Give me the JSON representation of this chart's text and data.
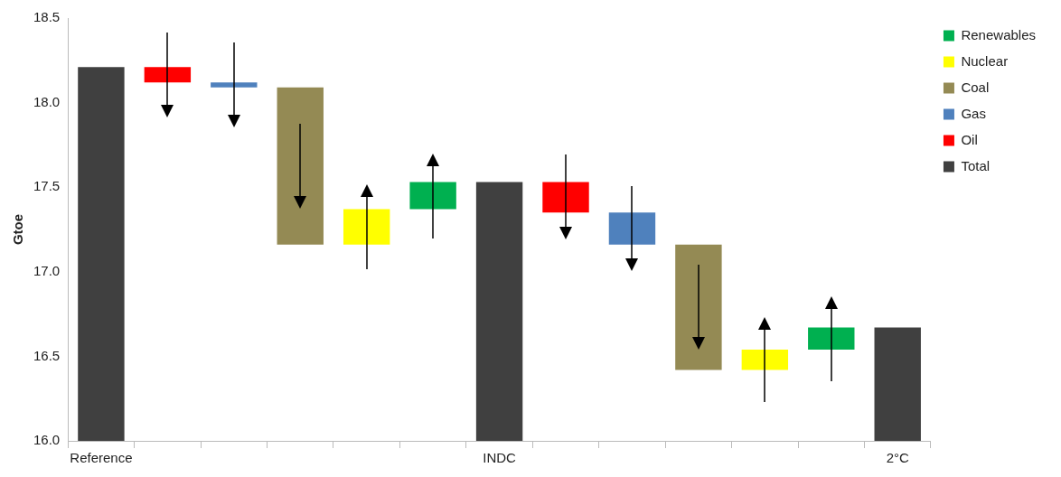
{
  "chart_data": {
    "type": "bar",
    "ylabel": "Gtoe",
    "categories": [
      "Reference",
      null,
      null,
      null,
      null,
      null,
      "INDC",
      null,
      null,
      null,
      null,
      null,
      "2°C"
    ],
    "series": [
      {
        "name": "Renewables",
        "color": "#00b050",
        "values": [
          null,
          null,
          null,
          null,
          null,
          0.16,
          null,
          null,
          null,
          null,
          null,
          0.13,
          null
        ],
        "base": [
          null,
          null,
          null,
          null,
          null,
          17.37,
          null,
          null,
          null,
          null,
          null,
          16.54,
          null
        ]
      },
      {
        "name": "Nuclear",
        "color": "#ffff00",
        "values": [
          null,
          null,
          null,
          null,
          0.21,
          null,
          null,
          null,
          null,
          null,
          0.12,
          null,
          null
        ],
        "base": [
          null,
          null,
          null,
          null,
          17.16,
          null,
          null,
          null,
          null,
          null,
          16.42,
          null,
          null
        ]
      },
      {
        "name": "Coal",
        "color": "#948a54",
        "values": [
          null,
          null,
          null,
          0.93,
          null,
          null,
          null,
          null,
          null,
          0.74,
          null,
          null,
          null
        ],
        "base": [
          null,
          null,
          null,
          17.16,
          null,
          null,
          null,
          null,
          null,
          16.42,
          null,
          null,
          null
        ]
      },
      {
        "name": "Gas",
        "color": "#4f81bd",
        "values": [
          null,
          null,
          0.03,
          null,
          null,
          null,
          null,
          null,
          0.19,
          null,
          null,
          null,
          null
        ],
        "base": [
          null,
          null,
          18.09,
          null,
          null,
          null,
          null,
          null,
          17.16,
          null,
          null,
          null,
          null
        ]
      },
      {
        "name": "Oil",
        "color": "#ff0000",
        "values": [
          null,
          0.09,
          null,
          null,
          null,
          null,
          null,
          0.18,
          null,
          null,
          null,
          null,
          null
        ],
        "base": [
          null,
          18.12,
          null,
          null,
          null,
          null,
          null,
          17.35,
          null,
          null,
          null,
          null,
          null
        ]
      },
      {
        "name": "Total",
        "color": "#404040",
        "values": [
          18.21,
          null,
          null,
          null,
          null,
          null,
          17.53,
          null,
          null,
          null,
          null,
          null,
          16.67
        ]
      }
    ],
    "ylim": [
      16,
      18.5
    ],
    "yticks": [
      {
        "value": 16,
        "label": "16.0"
      },
      {
        "value": 16.5,
        "label": "16.5"
      },
      {
        "value": 17,
        "label": "17.0"
      },
      {
        "value": 17.5,
        "label": "17.5"
      },
      {
        "value": 18,
        "label": "18.0"
      },
      {
        "value": 18.5,
        "label": "18.5"
      }
    ],
    "grid": false,
    "legend": "top right"
  }
}
